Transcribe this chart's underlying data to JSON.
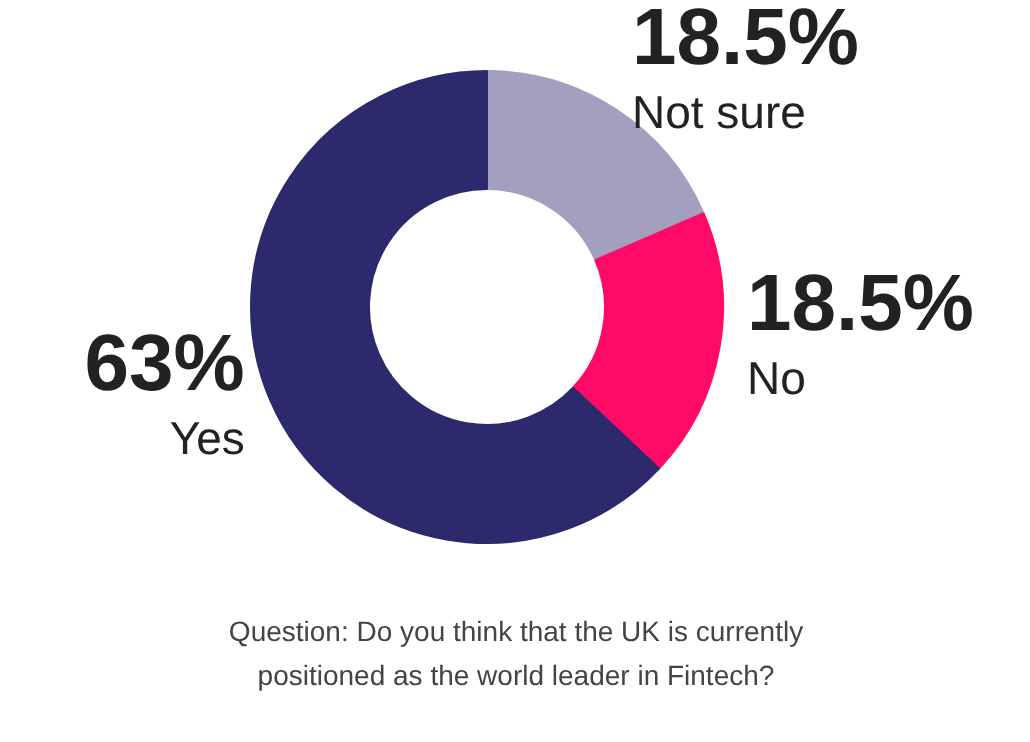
{
  "chart_data": {
    "type": "donut",
    "categories": [
      "Not sure",
      "No",
      "Yes"
    ],
    "values": [
      18.5,
      18.5,
      63
    ],
    "value_labels": [
      "18.5%",
      "18.5%",
      "63%"
    ],
    "colors": [
      "#a29fbf",
      "#ff0a66",
      "#2c2a6c"
    ],
    "annotations": [
      "Question: Do you think that the UK is currently positioned as the world leader in Fintech?"
    ]
  }
}
